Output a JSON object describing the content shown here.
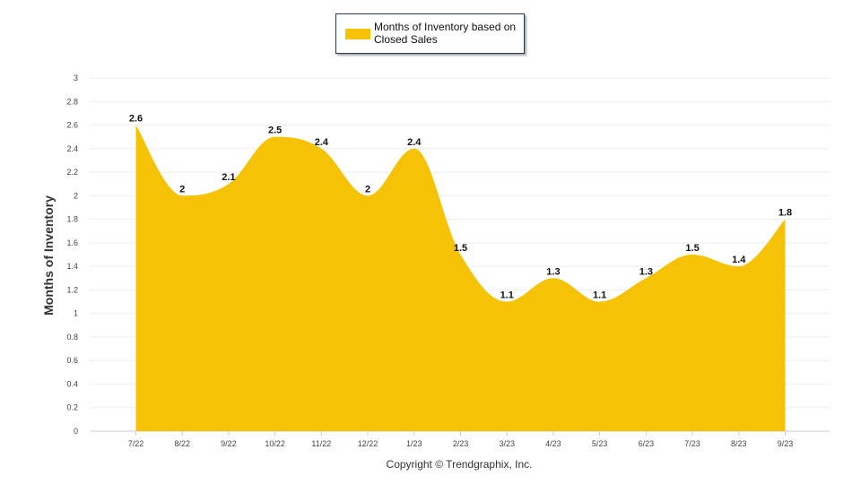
{
  "chart_data": {
    "type": "area",
    "title": "",
    "xlabel": "",
    "ylabel": "Months of Inventory",
    "categories": [
      "7/22",
      "8/22",
      "9/22",
      "10/22",
      "11/22",
      "12/22",
      "1/23",
      "2/23",
      "3/23",
      "4/23",
      "5/23",
      "6/23",
      "7/23",
      "8/23",
      "9/23"
    ],
    "series": [
      {
        "name": "Months of Inventory based on Closed Sales",
        "values": [
          2.6,
          2,
          2.1,
          2.5,
          2.4,
          2,
          2.4,
          1.5,
          1.1,
          1.3,
          1.1,
          1.3,
          1.5,
          1.4,
          1.8
        ],
        "color": "#f5c205"
      }
    ],
    "ylim": [
      0,
      3
    ],
    "yticks": [
      "0",
      "0.2",
      "0.4",
      "0.6",
      "0.8",
      "1",
      "1.2",
      "1.4",
      "1.6",
      "1.8",
      "2",
      "2.2",
      "2.4",
      "2.6",
      "2.8",
      "3"
    ],
    "grid": true,
    "legend_position": "top-center",
    "data_labels": [
      "2.6",
      "2",
      "2.1",
      "2.5",
      "2.4",
      "2",
      "2.4",
      "1.5",
      "1.1",
      "1.3",
      "1.1",
      "1.3",
      "1.5",
      "1.4",
      "1.8"
    ]
  },
  "legend": {
    "label": "Months of Inventory based on Closed Sales"
  },
  "footer": {
    "copyright": "Copyright © Trendgraphix, Inc."
  }
}
